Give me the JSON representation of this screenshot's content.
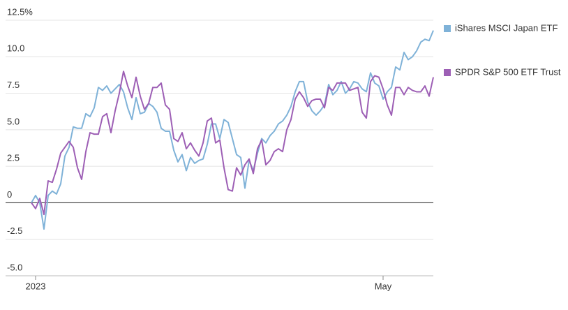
{
  "chart_data": {
    "type": "line",
    "categories": [
      null,
      "2023",
      null,
      null,
      null,
      null,
      null,
      null,
      null,
      null,
      null,
      null,
      null,
      null,
      null,
      null,
      null,
      null,
      null,
      null,
      null,
      null,
      null,
      null,
      null,
      null,
      null,
      null,
      null,
      null,
      null,
      null,
      null,
      null,
      null,
      null,
      null,
      null,
      null,
      null,
      null,
      null,
      null,
      null,
      null,
      null,
      null,
      null,
      null,
      null,
      null,
      null,
      null,
      null,
      null,
      null,
      null,
      null,
      null,
      null,
      null,
      null,
      null,
      null,
      null,
      null,
      null,
      null,
      null,
      null,
      null,
      null,
      null,
      null,
      null,
      null,
      null,
      null,
      null,
      null,
      null,
      null,
      null,
      null,
      "May",
      null,
      null,
      null,
      null,
      null,
      null,
      null,
      null,
      null,
      null,
      null,
      null
    ],
    "series": [
      {
        "name": "iShares MSCI Japan ETF",
        "color": "#7fb2d8",
        "values": [
          0,
          0.5,
          0,
          -1.8,
          0.5,
          0.8,
          0.6,
          1.3,
          3.2,
          3.8,
          5.2,
          5.1,
          5.1,
          6.1,
          5.9,
          6.5,
          7.9,
          7.7,
          8.0,
          7.5,
          7.8,
          8.1,
          7.6,
          6.5,
          5.7,
          7.2,
          6.1,
          6.2,
          6.8,
          6.6,
          6.2,
          5.1,
          4.9,
          4.9,
          3.6,
          2.8,
          3.3,
          2.2,
          3.1,
          2.7,
          2.9,
          3.0,
          4.0,
          5.4,
          5.4,
          4.4,
          5.7,
          5.5,
          4.4,
          3.3,
          3.1,
          1.0,
          2.9,
          2.2,
          3.4,
          4.4,
          4.1,
          4.6,
          4.9,
          5.4,
          5.6,
          6.0,
          6.6,
          7.6,
          8.3,
          8.3,
          6.9,
          6.3,
          6.0,
          6.3,
          6.7,
          8.1,
          7.4,
          7.7,
          8.3,
          7.5,
          7.8,
          8.3,
          8.2,
          7.8,
          7.6,
          8.9,
          8.2,
          8.0,
          7.1,
          7.6,
          7.9,
          9.3,
          9.1,
          10.3,
          9.8,
          10.0,
          10.4,
          11.0,
          11.2,
          11.1,
          11.8
        ]
      },
      {
        "name": "SPDR S&P 500 ETF Trust",
        "color": "#9d5fb5",
        "values": [
          0,
          -0.4,
          0.3,
          -0.8,
          1.5,
          1.4,
          2.3,
          3.4,
          3.8,
          4.2,
          3.8,
          2.4,
          1.6,
          3.5,
          4.8,
          4.7,
          4.7,
          5.9,
          6.1,
          4.8,
          6.3,
          7.5,
          9.0,
          8.0,
          7.2,
          8.6,
          7.3,
          6.4,
          6.8,
          7.9,
          7.9,
          8.2,
          6.7,
          6.4,
          4.4,
          4.2,
          4.8,
          3.7,
          4.1,
          3.6,
          3.2,
          4.1,
          5.6,
          5.8,
          4.1,
          4.3,
          2.4,
          0.9,
          0.8,
          2.4,
          1.9,
          2.6,
          3.0,
          2.0,
          3.7,
          4.3,
          2.6,
          2.9,
          3.5,
          3.7,
          3.5,
          5.0,
          5.7,
          7.1,
          7.6,
          7.2,
          6.6,
          7.0,
          7.1,
          7.1,
          6.5,
          7.9,
          7.7,
          8.2,
          8.2,
          8.2,
          7.7,
          7.8,
          7.9,
          6.2,
          5.8,
          8.3,
          8.7,
          8.6,
          7.8,
          6.7,
          6.0,
          7.9,
          7.9,
          7.4,
          7.9,
          7.7,
          7.6,
          7.6,
          8.0,
          7.3,
          8.6
        ]
      }
    ],
    "ylim": [
      -5,
      12.5
    ],
    "yticks": [
      {
        "value": -5,
        "label": "-5.0"
      },
      -2.5,
      0,
      2.5,
      {
        "value": 5,
        "label": "5.0"
      },
      7.5,
      {
        "value": 10,
        "label": "10.0"
      },
      {
        "value": 12.5,
        "label": "12.5%"
      }
    ],
    "grid": true,
    "legend": "right"
  }
}
